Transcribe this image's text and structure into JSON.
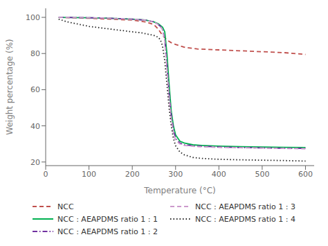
{
  "chart_data": {
    "type": "line",
    "title": "",
    "xlabel": "Temperature (°C)",
    "ylabel": "Weight percentage (%)",
    "xlim": [
      0,
      620
    ],
    "ylim": [
      18,
      105
    ],
    "xticks": [
      0,
      100,
      200,
      300,
      400,
      500,
      600
    ],
    "yticks": [
      20,
      40,
      60,
      80,
      100
    ],
    "grid": false,
    "legend": "bottom",
    "series": [
      {
        "name": "NCC",
        "color": "#c0504d",
        "line_style": "dashed",
        "x": [
          30,
          100,
          150,
          200,
          230,
          250,
          260,
          270,
          280,
          290,
          300,
          320,
          350,
          400,
          450,
          500,
          550,
          600
        ],
        "values": [
          100,
          99.5,
          99.0,
          98.5,
          97.5,
          96.0,
          93.5,
          90.0,
          87.5,
          86.0,
          85.0,
          83.5,
          82.5,
          82.0,
          81.5,
          81.0,
          80.5,
          79.5
        ]
      },
      {
        "name": "NCC : AEAPDMS ratio 1 : 1",
        "color": "#00b050",
        "line_style": "solid",
        "x": [
          30,
          100,
          150,
          200,
          230,
          250,
          260,
          270,
          275,
          280,
          285,
          290,
          295,
          300,
          310,
          320,
          340,
          360,
          400,
          450,
          500,
          550,
          600
        ],
        "values": [
          100,
          99.8,
          99.5,
          99.0,
          98.5,
          97.5,
          96.5,
          94.5,
          92.0,
          80.0,
          63.0,
          48.0,
          40.0,
          35.0,
          31.5,
          30.5,
          29.5,
          29.2,
          28.8,
          28.5,
          28.3,
          28.1,
          28.0
        ]
      },
      {
        "name": "NCC : AEAPDMS ratio 1 : 2",
        "color": "#7030a0",
        "line_style": "dashdot",
        "x": [
          30,
          100,
          150,
          200,
          230,
          250,
          260,
          265,
          270,
          275,
          280,
          285,
          290,
          295,
          300,
          310,
          320,
          340,
          360,
          400,
          450,
          500,
          550,
          600
        ],
        "values": [
          100,
          99.8,
          99.5,
          99.0,
          98.5,
          97.5,
          96.0,
          95.0,
          93.0,
          88.0,
          74.0,
          58.0,
          46.0,
          38.0,
          33.0,
          30.5,
          29.5,
          29.0,
          28.7,
          28.3,
          28.0,
          27.8,
          27.6,
          27.5
        ]
      },
      {
        "name": "NCC : AEAPDMS ratio 1 : 3",
        "color": "#cc99cc",
        "line_style": "dashed",
        "x": [
          30,
          100,
          150,
          200,
          230,
          250,
          260,
          265,
          270,
          275,
          280,
          285,
          290,
          295,
          300,
          310,
          320,
          340,
          360,
          400,
          450,
          500,
          550,
          600
        ],
        "values": [
          100,
          99.8,
          99.5,
          99.0,
          98.5,
          97.5,
          96.0,
          95.0,
          93.0,
          87.0,
          72.0,
          56.0,
          44.0,
          36.0,
          32.0,
          30.0,
          29.2,
          28.7,
          28.4,
          28.1,
          27.9,
          27.7,
          27.5,
          27.3
        ]
      },
      {
        "name": "NCC : AEAPDMS ratio 1 : 4",
        "color": "#222222",
        "line_style": "dotted",
        "x": [
          30,
          50,
          100,
          150,
          200,
          220,
          240,
          250,
          260,
          265,
          270,
          275,
          280,
          285,
          290,
          295,
          300,
          310,
          320,
          340,
          360,
          400,
          450,
          500,
          550,
          600
        ],
        "values": [
          99.0,
          97.5,
          95.0,
          93.5,
          92.0,
          91.5,
          90.5,
          90.0,
          89.0,
          87.5,
          84.0,
          76.0,
          63.0,
          50.0,
          40.0,
          33.0,
          29.0,
          25.5,
          24.0,
          22.5,
          22.0,
          21.5,
          21.2,
          21.0,
          20.8,
          20.5
        ]
      }
    ]
  }
}
